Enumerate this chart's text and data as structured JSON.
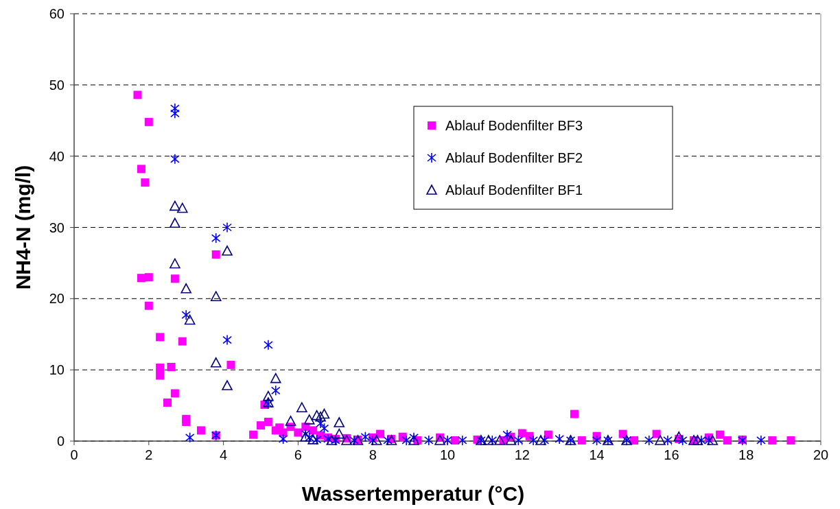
{
  "chart_data": {
    "type": "scatter",
    "xlabel": "Wassertemperatur (°C)",
    "ylabel": "NH4-N (mg/l)",
    "xlim": [
      0,
      20
    ],
    "ylim": [
      0,
      60
    ],
    "xticks": [
      0,
      2,
      4,
      6,
      8,
      10,
      12,
      14,
      16,
      18,
      20
    ],
    "yticks": [
      0,
      10,
      20,
      30,
      40,
      50,
      60
    ],
    "grid": "y",
    "legend": "top right",
    "series": [
      {
        "name": "Ablauf Bodenfilter BF3",
        "color": "#ff00ff",
        "marker": "square",
        "x": [
          1.7,
          2.0,
          1.8,
          1.9,
          1.8,
          2.0,
          2.7,
          3.8,
          2.0,
          2.3,
          2.9,
          4.2,
          2.3,
          2.3,
          2.6,
          2.7,
          2.5,
          3.0,
          3.0,
          3.4,
          3.8,
          4.8,
          5.0,
          5.1,
          5.2,
          5.4,
          5.5,
          5.6,
          5.8,
          6.0,
          6.2,
          6.4,
          6.6,
          6.8,
          7.0,
          7.3,
          7.6,
          8.0,
          8.2,
          8.5,
          8.8,
          9.2,
          9.8,
          10.2,
          10.8,
          11.5,
          11.7,
          12.0,
          12.2,
          12.7,
          13.4,
          13.6,
          14.0,
          14.7,
          15.0,
          15.6,
          16.2,
          16.6,
          17.0,
          17.3,
          17.5,
          17.9,
          18.7,
          19.2
        ],
        "values": [
          48.6,
          44.8,
          38.2,
          36.3,
          22.9,
          23.0,
          22.8,
          26.2,
          19.0,
          14.6,
          14.0,
          10.7,
          10.3,
          9.2,
          10.4,
          6.7,
          5.4,
          3.1,
          2.7,
          1.5,
          0.8,
          0.9,
          2.2,
          5.1,
          2.7,
          1.5,
          1.9,
          1.2,
          2.0,
          1.2,
          2.0,
          1.5,
          0.8,
          0.5,
          0.3,
          0.4,
          0.2,
          0.5,
          1.0,
          0.3,
          0.6,
          0.1,
          0.5,
          0.1,
          0.2,
          0.1,
          0.6,
          1.1,
          0.7,
          0.9,
          3.8,
          0.1,
          0.7,
          1.0,
          0.1,
          1.0,
          0.3,
          0.1,
          0.5,
          0.9,
          0.1,
          0.2,
          0.1,
          0.1
        ]
      },
      {
        "name": "Ablauf Bodenfilter BF2",
        "color": "#0000ff",
        "marker": "cross",
        "x": [
          2.7,
          2.7,
          2.7,
          3.8,
          4.1,
          3.0,
          4.1,
          5.2,
          5.4,
          5.2,
          3.1,
          3.8,
          5.6,
          6.2,
          6.3,
          6.5,
          6.6,
          6.7,
          6.8,
          7.0,
          7.5,
          7.8,
          8.0,
          8.4,
          8.9,
          9.1,
          9.5,
          10.0,
          10.4,
          10.9,
          11.2,
          11.6,
          11.9,
          12.3,
          12.6,
          13.0,
          13.3,
          14.0,
          14.3,
          14.8,
          15.4,
          15.9,
          16.3,
          16.8,
          17.0,
          17.9,
          18.4
        ],
        "values": [
          46.7,
          46.0,
          39.6,
          28.5,
          30.0,
          17.7,
          14.2,
          13.5,
          7.1,
          5.2,
          0.5,
          0.8,
          0.3,
          1.0,
          0.5,
          0.2,
          2.5,
          1.8,
          0.3,
          0.1,
          0.1,
          0.6,
          0.1,
          0.1,
          0.1,
          0.5,
          0.1,
          0.1,
          0.1,
          0.1,
          0.1,
          0.9,
          0.1,
          0.1,
          0.1,
          0.3,
          0.1,
          0.1,
          0.1,
          0.1,
          0.1,
          0.1,
          0.1,
          0.1,
          0.1,
          0.1,
          0.1
        ]
      },
      {
        "name": "Ablauf Bodenfilter BF1",
        "color": "#000080",
        "marker": "triangle",
        "x": [
          2.7,
          2.9,
          2.7,
          4.1,
          2.7,
          3.8,
          3.0,
          3.1,
          3.8,
          4.1,
          5.4,
          5.2,
          5.2,
          6.1,
          5.8,
          6.3,
          6.5,
          6.6,
          6.7,
          7.1,
          6.2,
          6.4,
          6.9,
          7.1,
          7.3,
          7.6,
          8.1,
          8.5,
          9.1,
          9.8,
          10.9,
          11.1,
          11.4,
          11.7,
          12.5,
          13.3,
          14.3,
          14.8,
          15.7,
          16.2,
          16.6,
          16.7,
          17.1
        ],
        "values": [
          33.0,
          32.7,
          30.6,
          26.7,
          24.9,
          20.3,
          21.4,
          17.0,
          11.0,
          7.8,
          8.8,
          6.3,
          5.4,
          4.7,
          2.8,
          3.0,
          3.6,
          3.4,
          3.8,
          2.6,
          0.6,
          0.2,
          0.1,
          1.0,
          0.1,
          0.1,
          0.1,
          0.1,
          0.1,
          0.1,
          0.1,
          0.1,
          0.1,
          0.1,
          0.1,
          0.1,
          0.1,
          0.1,
          0.1,
          0.6,
          0.1,
          0.1,
          0.1
        ]
      }
    ]
  }
}
